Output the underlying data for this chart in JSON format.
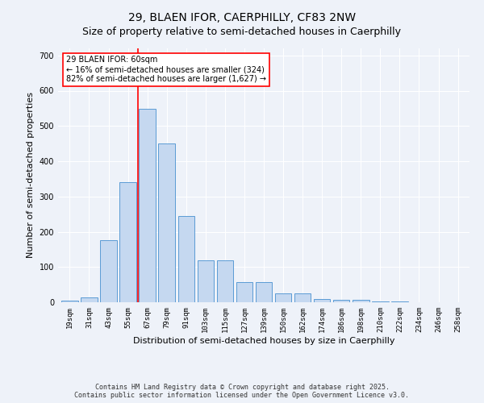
{
  "title1": "29, BLAEN IFOR, CAERPHILLY, CF83 2NW",
  "title2": "Size of property relative to semi-detached houses in Caerphilly",
  "xlabel": "Distribution of semi-detached houses by size in Caerphilly",
  "ylabel": "Number of semi-detached properties",
  "categories": [
    "19sqm",
    "31sqm",
    "43sqm",
    "55sqm",
    "67sqm",
    "79sqm",
    "91sqm",
    "103sqm",
    "115sqm",
    "127sqm",
    "139sqm",
    "150sqm",
    "162sqm",
    "174sqm",
    "186sqm",
    "198sqm",
    "210sqm",
    "222sqm",
    "234sqm",
    "246sqm",
    "258sqm"
  ],
  "values": [
    5,
    13,
    175,
    340,
    548,
    450,
    245,
    120,
    120,
    58,
    58,
    25,
    25,
    10,
    8,
    8,
    3,
    2,
    1,
    0,
    0
  ],
  "bar_color": "#c5d8f0",
  "bar_edge_color": "#5b9bd5",
  "vline_x": 3.5,
  "vline_color": "red",
  "annotation_text": "29 BLAEN IFOR: 60sqm\n← 16% of semi-detached houses are smaller (324)\n82% of semi-detached houses are larger (1,627) →",
  "annotation_box_color": "white",
  "annotation_box_edge": "red",
  "ylim": [
    0,
    720
  ],
  "yticks": [
    0,
    100,
    200,
    300,
    400,
    500,
    600,
    700
  ],
  "footer": "Contains HM Land Registry data © Crown copyright and database right 2025.\nContains public sector information licensed under the Open Government Licence v3.0.",
  "bg_color": "#eef2f9",
  "title_fontsize": 10,
  "subtitle_fontsize": 9,
  "tick_fontsize": 6.5,
  "label_fontsize": 8,
  "footer_fontsize": 6
}
